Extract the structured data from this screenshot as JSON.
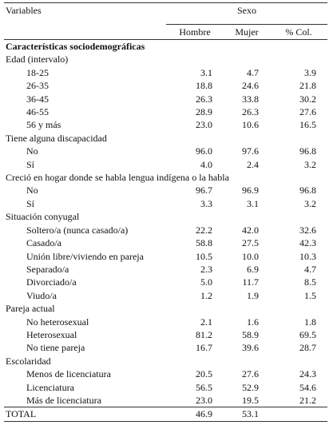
{
  "header": {
    "variables": "Variables",
    "group": "Sexo",
    "columns": [
      "Hombre",
      "Mujer",
      "% Col."
    ]
  },
  "section": "Características sociodemográficas",
  "groups": [
    {
      "label": "Edad (intervalo)",
      "rows": [
        {
          "label": "18-25",
          "values": [
            "3.1",
            "4.7",
            "3.9"
          ]
        },
        {
          "label": "26-35",
          "values": [
            "18.8",
            "24.6",
            "21.8"
          ]
        },
        {
          "label": "36-45",
          "values": [
            "26.3",
            "33.8",
            "30.2"
          ]
        },
        {
          "label": "46-55",
          "values": [
            "28.9",
            "26.3",
            "27.6"
          ]
        },
        {
          "label": "56 y más",
          "values": [
            "23.0",
            "10.6",
            "16.5"
          ]
        }
      ]
    },
    {
      "label": "Tiene alguna discapacidad",
      "rows": [
        {
          "label": "No",
          "values": [
            "96.0",
            "97.6",
            "96.8"
          ]
        },
        {
          "label": "Sí",
          "values": [
            "4.0",
            "2.4",
            "3.2"
          ]
        }
      ]
    },
    {
      "label": "Creció en hogar donde se habla lengua indígena o la habla",
      "rows": [
        {
          "label": "No",
          "values": [
            "96.7",
            "96.9",
            "96.8"
          ]
        },
        {
          "label": "Sí",
          "values": [
            "3.3",
            "3.1",
            "3.2"
          ]
        }
      ]
    },
    {
      "label": "Situación conyugal",
      "rows": [
        {
          "label": "Soltero/a (nunca casado/a)",
          "values": [
            "22.2",
            "42.0",
            "32.6"
          ]
        },
        {
          "label": "Casado/a",
          "values": [
            "58.8",
            "27.5",
            "42.3"
          ]
        },
        {
          "label": "Unión libre/viviendo en pareja",
          "values": [
            "10.5",
            "10.0",
            "10.3"
          ]
        },
        {
          "label": "Separado/a",
          "values": [
            "2.3",
            "6.9",
            "4.7"
          ]
        },
        {
          "label": "Divorciado/a",
          "values": [
            "5.0",
            "11.7",
            "8.5"
          ]
        },
        {
          "label": "Viudo/a",
          "values": [
            "1.2",
            "1.9",
            "1.5"
          ]
        }
      ]
    },
    {
      "label": "Pareja actual",
      "rows": [
        {
          "label": "No heterosexual",
          "values": [
            "2.1",
            "1.6",
            "1.8"
          ]
        },
        {
          "label": "Heterosexual",
          "values": [
            "81.2",
            "58.9",
            "69.5"
          ]
        },
        {
          "label": "No tiene pareja",
          "values": [
            "16.7",
            "39.6",
            "28.7"
          ]
        }
      ]
    },
    {
      "label": "Escolaridad",
      "rows": [
        {
          "label": "Menos de licenciatura",
          "values": [
            "20.5",
            "27.6",
            "24.3"
          ]
        },
        {
          "label": "Licenciatura",
          "values": [
            "56.5",
            "52.9",
            "54.6"
          ]
        },
        {
          "label": "Más de licenciatura",
          "values": [
            "23.0",
            "19.5",
            "21.2"
          ]
        }
      ]
    }
  ],
  "total": {
    "label": "TOTAL",
    "values": [
      "46.9",
      "53.1"
    ]
  }
}
